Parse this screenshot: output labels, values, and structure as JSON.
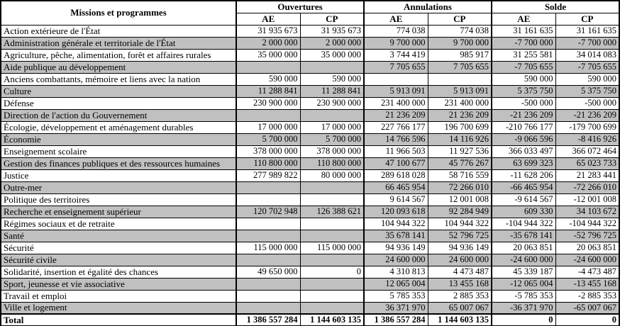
{
  "table": {
    "header": {
      "missions_label": "Missions et programmes",
      "groups": [
        {
          "label": "Ouvertures"
        },
        {
          "label": "Annulations"
        },
        {
          "label": "Solde"
        }
      ],
      "subcols": [
        "AE",
        "CP"
      ]
    },
    "rows": [
      {
        "mission": "Action extérieure de l'État",
        "values": [
          "31 935 673",
          "31 935 673",
          "774 038",
          "774 038",
          "31 161 635",
          "31 161 635"
        ]
      },
      {
        "mission": "Administration générale et territoriale de l'État",
        "values": [
          "2 000 000",
          "2 000 000",
          "9 700 000",
          "9 700 000",
          "-7 700 000",
          "-7 700 000"
        ]
      },
      {
        "mission": "Agriculture, pêche, alimentation, forêt et affaires rurales",
        "values": [
          "35 000 000",
          "35 000 000",
          "3 744 419",
          "985 917",
          "31 255 581",
          "34 014 083"
        ]
      },
      {
        "mission": "Aide publique au développement",
        "values": [
          "",
          "",
          "7 705 655",
          "7 705 655",
          "-7 705 655",
          "-7 705 655"
        ]
      },
      {
        "mission": "Anciens combattants, mémoire et liens avec la nation",
        "values": [
          "590 000",
          "590 000",
          "",
          "",
          "590 000",
          "590 000"
        ]
      },
      {
        "mission": "Culture",
        "values": [
          "11 288 841",
          "11 288 841",
          "5 913 091",
          "5 913 091",
          "5 375 750",
          "5 375 750"
        ]
      },
      {
        "mission": "Défense",
        "values": [
          "230 900 000",
          "230 900 000",
          "231 400 000",
          "231 400 000",
          "-500 000",
          "-500 000"
        ]
      },
      {
        "mission": "Direction de l'action du Gouvernement",
        "values": [
          "",
          "",
          "21 236 209",
          "21 236 209",
          "-21 236 209",
          "-21 236 209"
        ]
      },
      {
        "mission": "Écologie, développement et aménagement durables",
        "values": [
          "17 000 000",
          "17 000 000",
          "227 766 177",
          "196 700 699",
          "-210 766 177",
          "-179 700 699"
        ]
      },
      {
        "mission": "Économie",
        "values": [
          "5 700 000",
          "5 700 000",
          "14 766 596",
          "14 116 926",
          "-9 066 596",
          "-8 416 926"
        ]
      },
      {
        "mission": "Enseignement scolaire",
        "values": [
          "378 000 000",
          "378 000 000",
          "11 966 503",
          "11 927 536",
          "366 033 497",
          "366 072 464"
        ]
      },
      {
        "mission": "Gestion des finances publiques et des ressources humaines",
        "values": [
          "110 800 000",
          "110 800 000",
          "47 100 677",
          "45 776 267",
          "63 699 323",
          "65 023 733"
        ]
      },
      {
        "mission": "Justice",
        "values": [
          "277 989 822",
          "80 000 000",
          "289 618 028",
          "58 716 559",
          "-11 628 206",
          "21 283 441"
        ]
      },
      {
        "mission": "Outre-mer",
        "values": [
          "",
          "",
          "66 465 954",
          "72 266 010",
          "-66 465 954",
          "-72 266 010"
        ]
      },
      {
        "mission": "Politique des territoires",
        "values": [
          "",
          "",
          "9 614 567",
          "12 001 008",
          "-9 614 567",
          "-12 001 008"
        ]
      },
      {
        "mission": "Recherche et enseignement supérieur",
        "values": [
          "120 702 948",
          "126 388 621",
          "120 093 618",
          "92 284 949",
          "609 330",
          "34 103 672"
        ]
      },
      {
        "mission": "Régimes sociaux et de retraite",
        "values": [
          "",
          "",
          "104 944 322",
          "104 944 322",
          "-104 944 322",
          "-104 944 322"
        ]
      },
      {
        "mission": "Santé",
        "values": [
          "",
          "",
          "35 678 141",
          "52 796 725",
          "-35 678 141",
          "-52 796 725"
        ]
      },
      {
        "mission": "Sécurité",
        "values": [
          "115 000 000",
          "115 000 000",
          "94 936 149",
          "94 936 149",
          "20 063 851",
          "20 063 851"
        ]
      },
      {
        "mission": "Sécurité civile",
        "values": [
          "",
          "",
          "24 600 000",
          "24 600 000",
          "-24 600 000",
          "-24 600 000"
        ]
      },
      {
        "mission": "Solidarité, insertion et égalité des chances",
        "values": [
          "49 650 000",
          "0",
          "4 310 813",
          "4 473 487",
          "45 339 187",
          "-4 473 487"
        ]
      },
      {
        "mission": "Sport, jeunesse et vie associative",
        "values": [
          "",
          "",
          "12 065 004",
          "13 455 168",
          "-12 065 004",
          "-13 455 168"
        ]
      },
      {
        "mission": "Travail et emploi",
        "values": [
          "",
          "",
          "5 785 353",
          "2 885 353",
          "-5 785 353",
          "-2 885 353"
        ]
      },
      {
        "mission": "Ville et logement",
        "values": [
          "",
          "",
          "36 371 970",
          "65 007 067",
          "-36 371 970",
          "-65 007 067"
        ]
      }
    ],
    "total": {
      "label": "Total",
      "values": [
        "1 386 557 284",
        "1 144 603 135",
        "1 386 557 284",
        "1 144 603 135",
        "0",
        "0"
      ]
    }
  },
  "colors": {
    "row_alt": "#c0c0c0",
    "border": "#000000",
    "background": "#ffffff"
  }
}
